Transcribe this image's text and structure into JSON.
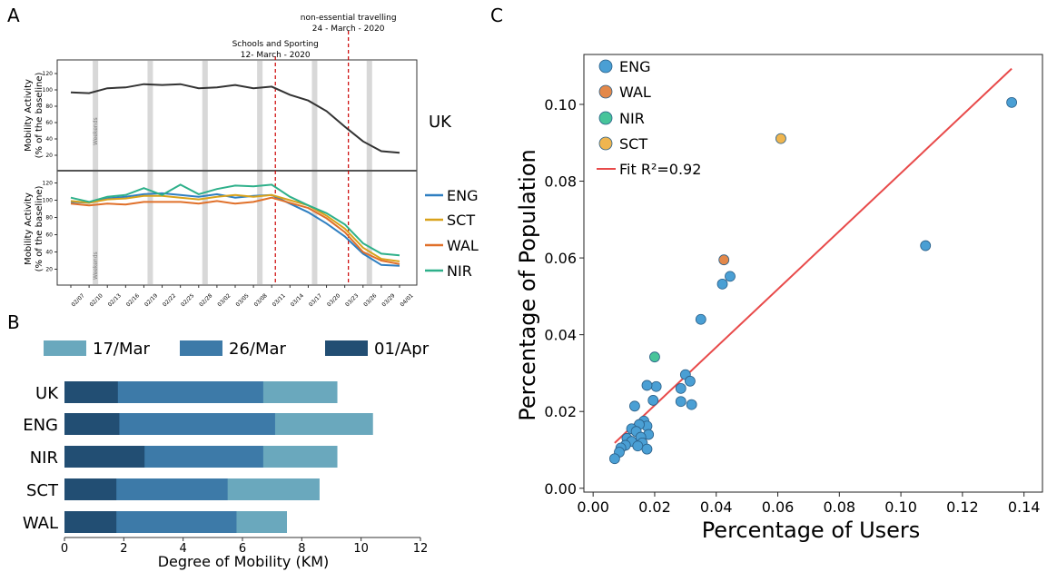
{
  "panels": {
    "a": "A",
    "b": "B",
    "c": "C"
  },
  "colors": {
    "ENG": "#2f7fc1",
    "SCT": "#d9a21b",
    "WAL": "#e0702a",
    "NIR": "#2eb08a",
    "UK": "#333333",
    "weekend": "#d8d8d8",
    "event": "#cc0000",
    "bar_17mar": "#6aa8bd",
    "bar_26mar": "#3d7aa8",
    "bar_01apr": "#224e73",
    "c_ENG": "#4a9fd4",
    "c_WAL": "#e3884a",
    "c_NIR": "#47c49a",
    "c_SCT": "#efb54f",
    "fit": "#e84a4a"
  },
  "chart_data": [
    {
      "id": "A",
      "type": "line",
      "x": [
        "02/07",
        "02/10",
        "02/13",
        "02/16",
        "02/19",
        "02/22",
        "02/25",
        "02/28",
        "03/02",
        "03/05",
        "03/08",
        "03/11",
        "03/14",
        "03/17",
        "03/20",
        "03/23",
        "03/26",
        "03/29",
        "04/01"
      ],
      "ylabel": "Mobility Activity\n(% of the baseline)",
      "yticks": [
        20,
        40,
        60,
        80,
        100,
        120
      ],
      "ylim": [
        10,
        130
      ],
      "weekend_label": "Weekends",
      "top": {
        "label": "UK",
        "series": [
          {
            "name": "UK",
            "values": [
              97,
              96,
              102,
              103,
              107,
              106,
              107,
              102,
              103,
              106,
              102,
              104,
              94,
              87,
              74,
              55,
              37,
              25,
              23
            ]
          }
        ]
      },
      "bottom": {
        "series": [
          {
            "name": "ENG",
            "values": [
              98,
              97,
              102,
              104,
              107,
              108,
              106,
              104,
              107,
              103,
              105,
              106,
              96,
              86,
              73,
              58,
              38,
              25,
              24
            ]
          },
          {
            "name": "SCT",
            "values": [
              99,
              97,
              101,
              102,
              105,
              105,
              103,
              101,
              104,
              106,
              104,
              106,
              100,
              94,
              82,
              67,
              45,
              32,
              29
            ]
          },
          {
            "name": "WAL",
            "values": [
              96,
              94,
              96,
              95,
              98,
              98,
              98,
              96,
              99,
              96,
              98,
              103,
              97,
              91,
              79,
              63,
              40,
              30,
              26
            ]
          },
          {
            "name": "NIR",
            "values": [
              103,
              98,
              104,
              106,
              114,
              106,
              118,
              107,
              113,
              117,
              116,
              118,
              104,
              94,
              85,
              72,
              50,
              38,
              36
            ]
          }
        ]
      },
      "events": [
        {
          "label": "Schools and Sporting",
          "date": "12- March - 2020",
          "x": "03/11"
        },
        {
          "label": "non-essential travelling",
          "date": "24 - March - 2020",
          "x": "03/23"
        }
      ]
    },
    {
      "id": "B",
      "type": "bar",
      "orientation": "horizontal",
      "stacked_overlay": true,
      "categories": [
        "UK",
        "ENG",
        "NIR",
        "SCT",
        "WAL"
      ],
      "series": [
        {
          "name": "17/Mar",
          "values": [
            9.2,
            10.4,
            9.2,
            8.6,
            7.5
          ]
        },
        {
          "name": "26/Mar",
          "values": [
            6.7,
            7.1,
            6.7,
            5.5,
            5.8
          ]
        },
        {
          "name": "01/Apr",
          "values": [
            1.8,
            1.85,
            2.7,
            1.75,
            1.75
          ]
        }
      ],
      "xlabel": "Degree of Mobility (KM)",
      "xticks": [
        0,
        2,
        4,
        6,
        8,
        10,
        12
      ],
      "xlim": [
        0,
        12
      ]
    },
    {
      "id": "C",
      "type": "scatter",
      "xlabel": "Percentage of Users",
      "ylabel": "Percentage of Population",
      "xticks": [
        0.0,
        0.02,
        0.04,
        0.06,
        0.08,
        0.1,
        0.12,
        0.14
      ],
      "yticks": [
        0.0,
        0.02,
        0.04,
        0.06,
        0.08,
        0.1
      ],
      "xlim": [
        -0.003,
        0.146
      ],
      "ylim": [
        -0.001,
        0.113
      ],
      "series": [
        {
          "name": "ENG",
          "points": [
            [
              0.136,
              0.1005
            ],
            [
              0.108,
              0.0632
            ],
            [
              0.0445,
              0.0552
            ],
            [
              0.042,
              0.0532
            ],
            [
              0.035,
              0.044
            ],
            [
              0.03,
              0.0296
            ],
            [
              0.0315,
              0.0279
            ],
            [
              0.0285,
              0.026
            ],
            [
              0.032,
              0.0218
            ],
            [
              0.0285,
              0.0226
            ],
            [
              0.0205,
              0.0265
            ],
            [
              0.0175,
              0.0268
            ],
            [
              0.0195,
              0.0229
            ],
            [
              0.0135,
              0.0214
            ],
            [
              0.0165,
              0.0175
            ],
            [
              0.0175,
              0.0162
            ],
            [
              0.015,
              0.0166
            ],
            [
              0.0125,
              0.0155
            ],
            [
              0.014,
              0.0148
            ],
            [
              0.018,
              0.014
            ],
            [
              0.0155,
              0.0133
            ],
            [
              0.011,
              0.013
            ],
            [
              0.0125,
              0.0122
            ],
            [
              0.016,
              0.0118
            ],
            [
              0.0145,
              0.011
            ],
            [
              0.0175,
              0.0102
            ],
            [
              0.0105,
              0.0112
            ],
            [
              0.009,
              0.0105
            ],
            [
              0.0085,
              0.0094
            ],
            [
              0.007,
              0.0077
            ]
          ]
        },
        {
          "name": "WAL",
          "points": [
            [
              0.0425,
              0.0595
            ]
          ]
        },
        {
          "name": "NIR",
          "points": [
            [
              0.02,
              0.0342
            ]
          ]
        },
        {
          "name": "SCT",
          "points": [
            [
              0.061,
              0.0911
            ]
          ]
        }
      ],
      "fit": {
        "name": "Fit R²=0.92",
        "x": [
          0.007,
          0.136
        ],
        "y": [
          0.0118,
          0.1093
        ]
      }
    }
  ]
}
